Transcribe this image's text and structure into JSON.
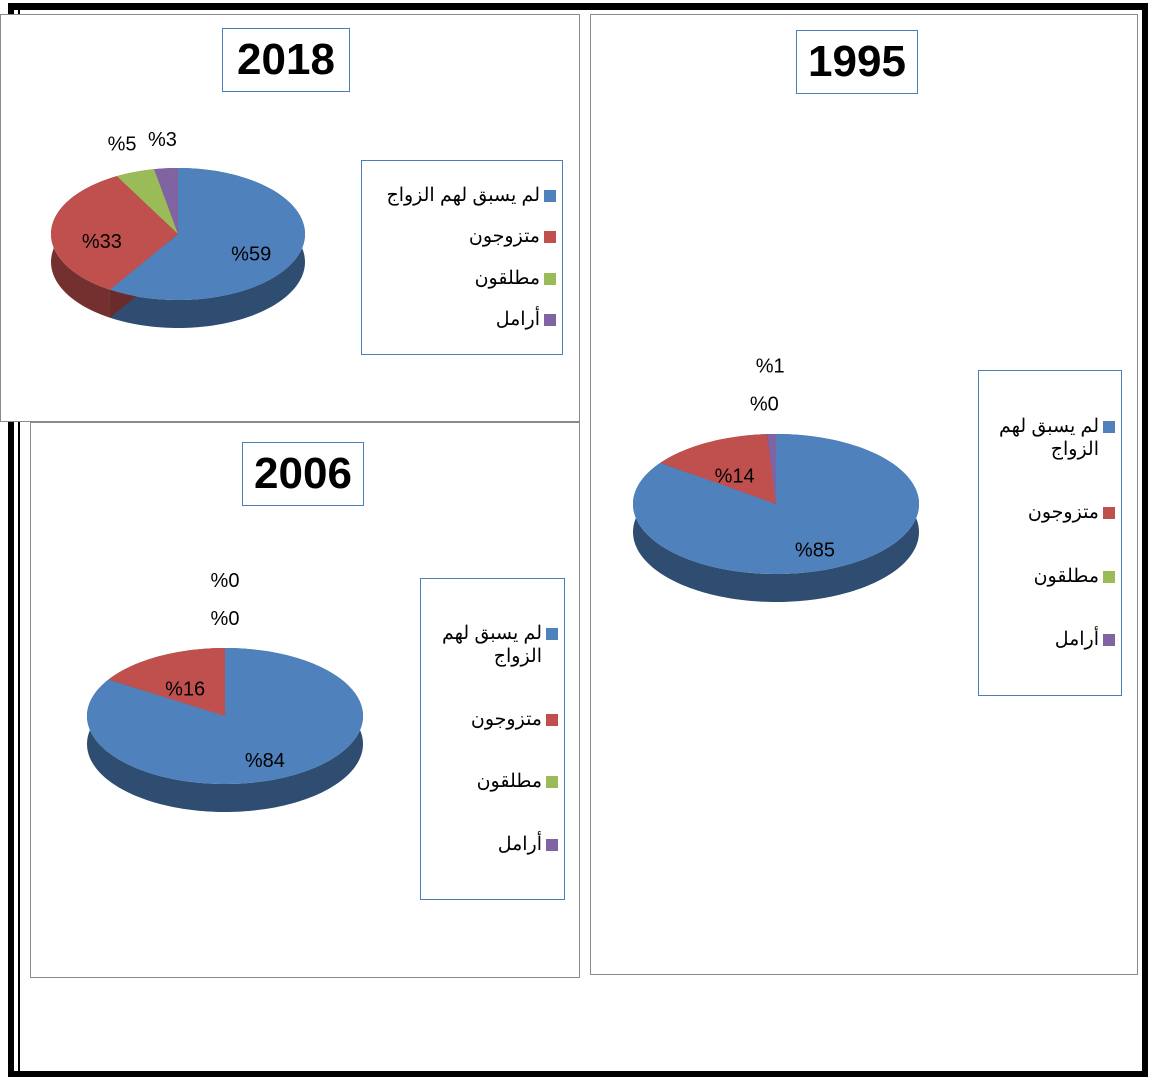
{
  "chart_data": [
    {
      "type": "pie",
      "title": "2018",
      "categories": [
        "لم يسبق لهم الزواج",
        "متزوجون",
        "مطلقون",
        "أرامل"
      ],
      "values": [
        59,
        33,
        5,
        3
      ],
      "value_labels": [
        "%59",
        "%33",
        "%5",
        "%3"
      ],
      "colors": [
        "#4f81bd",
        "#c0504d",
        "#9bbb59",
        "#8064a2"
      ]
    },
    {
      "type": "pie",
      "title": "2006",
      "categories": [
        "لم يسبق لهم الزواج",
        "متزوجون",
        "مطلقون",
        "أرامل"
      ],
      "values": [
        84,
        16,
        0,
        0
      ],
      "value_labels": [
        "%84",
        "%16",
        "%0",
        "%0"
      ],
      "colors": [
        "#4f81bd",
        "#c0504d",
        "#9bbb59",
        "#8064a2"
      ]
    },
    {
      "type": "pie",
      "title": "1995",
      "categories": [
        "لم يسبق لهم الزواج",
        "متزوجون",
        "مطلقون",
        "أرامل"
      ],
      "values": [
        85,
        14,
        0,
        1
      ],
      "value_labels": [
        "%85",
        "%14",
        "%0",
        "%1"
      ],
      "colors": [
        "#4f81bd",
        "#c0504d",
        "#9bbb59",
        "#8064a2"
      ]
    }
  ]
}
